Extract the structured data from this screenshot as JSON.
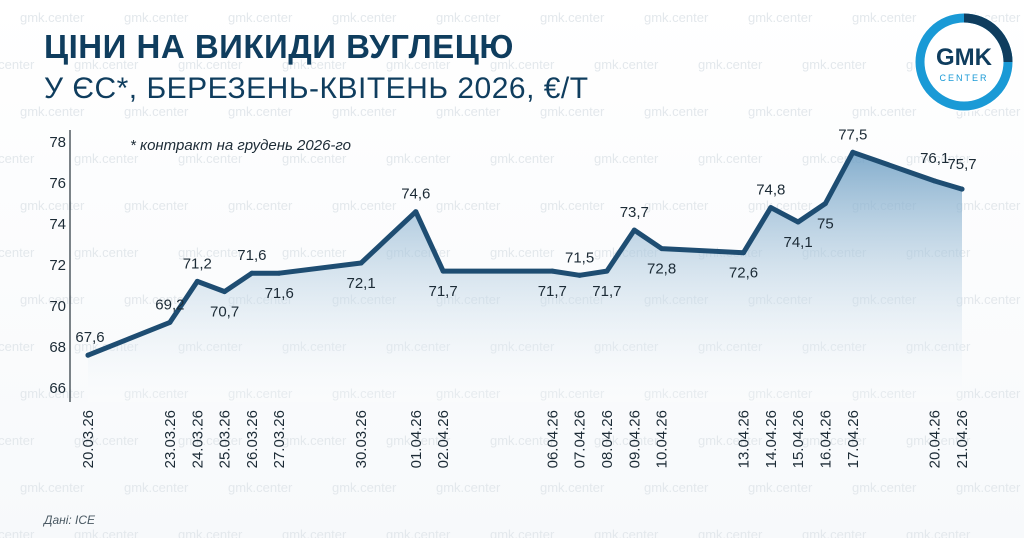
{
  "header": {
    "title_line1": "ЦІНИ НА ВИКИДИ ВУГЛЕЦЮ",
    "title_line2": "У ЄС*, БЕРЕЗЕНЬ-КВІТЕНЬ 2026, €/Т"
  },
  "footnote": "* контракт на грудень 2026-го",
  "source": "Дані: ICE",
  "watermark_text": "gmk.center",
  "logo": {
    "main": "GMK",
    "sub": "CENTER"
  },
  "colors": {
    "title": "#0f3d5e",
    "line": "#1e4d72",
    "area_top": "#6e9fc4",
    "area_bottom": "#ffffff",
    "logo_ring": "#1a9ad6"
  },
  "chart_data": {
    "type": "area",
    "x": [
      "20.03.26",
      "23.03.26",
      "24.03.26",
      "25.03.26",
      "26.03.26",
      "27.03.26",
      "30.03.26",
      "01.04.26",
      "02.04.26",
      "06.04.26",
      "07.04.26",
      "08.04.26",
      "09.04.26",
      "10.04.26",
      "13.04.26",
      "14.04.26",
      "15.04.26",
      "16.04.26",
      "17.04.26",
      "20.04.26",
      "21.04.26"
    ],
    "dates": [
      "2026-03-20",
      "2026-03-23",
      "2026-03-24",
      "2026-03-25",
      "2026-03-26",
      "2026-03-27",
      "2026-03-30",
      "2026-04-01",
      "2026-04-02",
      "2026-04-06",
      "2026-04-07",
      "2026-04-08",
      "2026-04-09",
      "2026-04-10",
      "2026-04-13",
      "2026-04-14",
      "2026-04-15",
      "2026-04-16",
      "2026-04-17",
      "2026-04-20",
      "2026-04-21"
    ],
    "values": [
      67.6,
      69.2,
      71.2,
      70.7,
      71.6,
      71.6,
      72.1,
      74.6,
      71.7,
      71.7,
      71.5,
      71.7,
      73.7,
      72.8,
      72.6,
      74.8,
      74.1,
      75,
      77.5,
      76.1,
      75.7
    ],
    "labels": [
      "67,6",
      "69,2",
      "71,2",
      "70,7",
      "71,6",
      "71,6",
      "72,1",
      "74,6",
      "71,7",
      "71,7",
      "71,5",
      "71,7",
      "73,7",
      "72,8",
      "72,6",
      "74,8",
      "74,1",
      "75",
      "77,5",
      "76,1",
      "75,7"
    ],
    "yticks": [
      "66",
      "68",
      "70",
      "72",
      "74",
      "76",
      "78"
    ],
    "ylim": [
      66,
      78
    ],
    "grid": false
  }
}
